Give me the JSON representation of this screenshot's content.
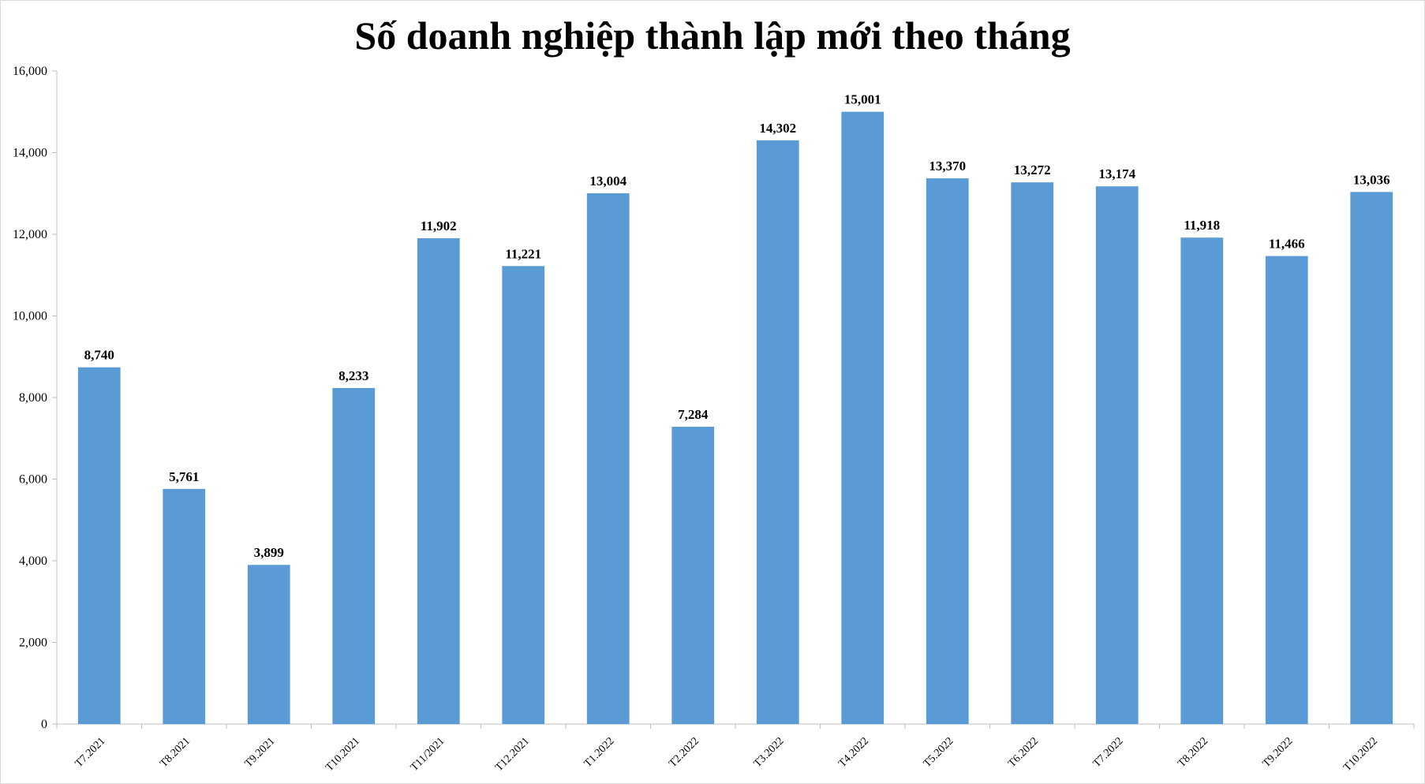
{
  "chart_data": {
    "type": "bar",
    "title": "Số doanh nghiệp thành lập mới theo tháng",
    "xlabel": "",
    "ylabel": "",
    "categories": [
      "T7.2021",
      "T8.2021",
      "T9.2021",
      "T10.2021",
      "T11/2021",
      "T12.2021",
      "T1.2022",
      "T2.2022",
      "T3.2022",
      "T4.2022",
      "T5.2022",
      "T6.2022",
      "T7.2022",
      "T8.2022",
      "T9.2022",
      "T10.2022"
    ],
    "values": [
      8740,
      5761,
      3899,
      8233,
      11902,
      11221,
      13004,
      7284,
      14302,
      15001,
      13370,
      13272,
      13174,
      11918,
      11466,
      13036
    ],
    "value_labels": [
      "8,740",
      "5,761",
      "3,899",
      "8,233",
      "11,902",
      "11,221",
      "13,004",
      "7,284",
      "14,302",
      "15,001",
      "13,370",
      "13,272",
      "13,174",
      "11,918",
      "11,466",
      "13,036"
    ],
    "ylim": [
      0,
      16000
    ],
    "yticks": [
      0,
      2000,
      4000,
      6000,
      8000,
      10000,
      12000,
      14000,
      16000
    ],
    "ytick_labels": [
      "0",
      "2,000",
      "4,000",
      "6,000",
      "8,000",
      "10,000",
      "12,000",
      "14,000",
      "16,000"
    ],
    "grid": false,
    "legend": "none",
    "bar_color": "#5b9bd5"
  }
}
